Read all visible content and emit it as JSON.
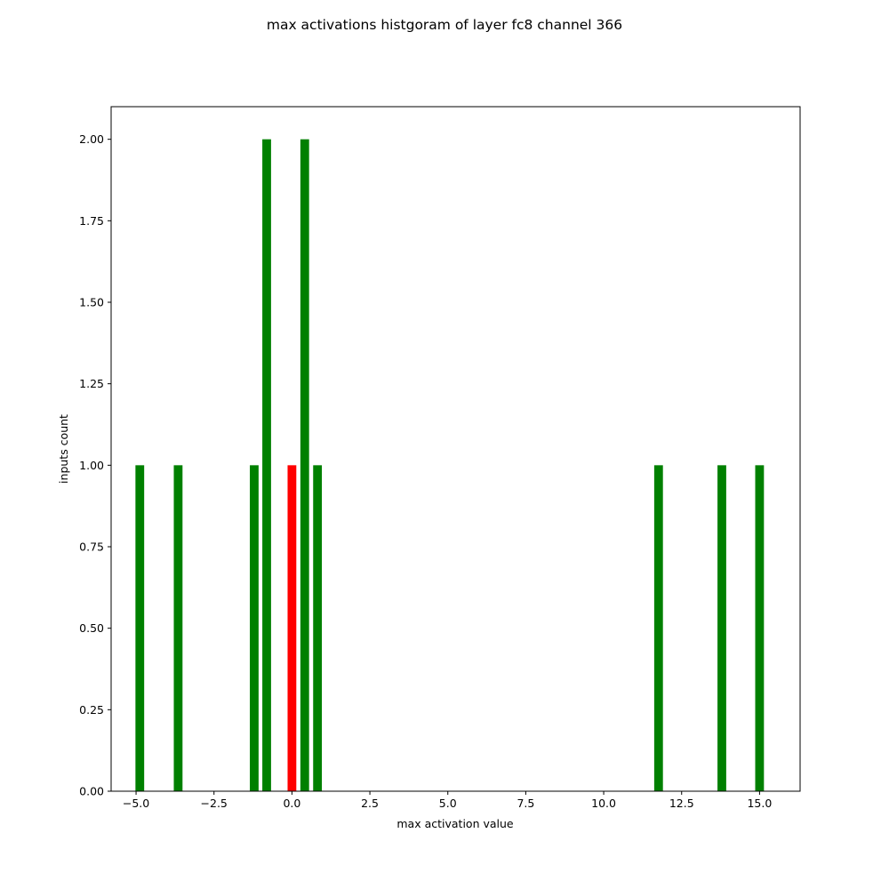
{
  "chart_data": {
    "type": "bar",
    "title": "max activations histgoram of layer fc8 channel 366",
    "xlabel": "max activation value",
    "ylabel": "inputs count",
    "xlim": [
      -5.8,
      16.3
    ],
    "ylim": [
      0,
      2.1
    ],
    "bar_width": 0.28,
    "grid": false,
    "legend": "none",
    "xticks": [
      -5.0,
      -2.5,
      0.0,
      2.5,
      5.0,
      7.5,
      10.0,
      12.5,
      15.0
    ],
    "xtick_labels": [
      "−5.0",
      "−2.5",
      "0.0",
      "2.5",
      "5.0",
      "7.5",
      "10.0",
      "12.5",
      "15.0"
    ],
    "yticks": [
      0,
      0.25,
      0.5,
      0.75,
      1.0,
      1.25,
      1.5,
      1.75,
      2.0
    ],
    "ytick_labels": [
      "0.00",
      "0.25",
      "0.50",
      "0.75",
      "1.00",
      "1.25",
      "1.50",
      "1.75",
      "2.00"
    ],
    "bars": [
      {
        "x": -4.88,
        "value": 1,
        "color": "#008000"
      },
      {
        "x": -3.65,
        "value": 1,
        "color": "#008000"
      },
      {
        "x": -1.21,
        "value": 1,
        "color": "#008000"
      },
      {
        "x": -0.81,
        "value": 2,
        "color": "#008000"
      },
      {
        "x": 0.0,
        "value": 1,
        "color": "#ff0000"
      },
      {
        "x": 0.41,
        "value": 2,
        "color": "#008000"
      },
      {
        "x": 0.82,
        "value": 1,
        "color": "#008000"
      },
      {
        "x": 11.76,
        "value": 1,
        "color": "#008000"
      },
      {
        "x": 13.79,
        "value": 1,
        "color": "#008000"
      },
      {
        "x": 15.0,
        "value": 1,
        "color": "#008000"
      }
    ]
  }
}
